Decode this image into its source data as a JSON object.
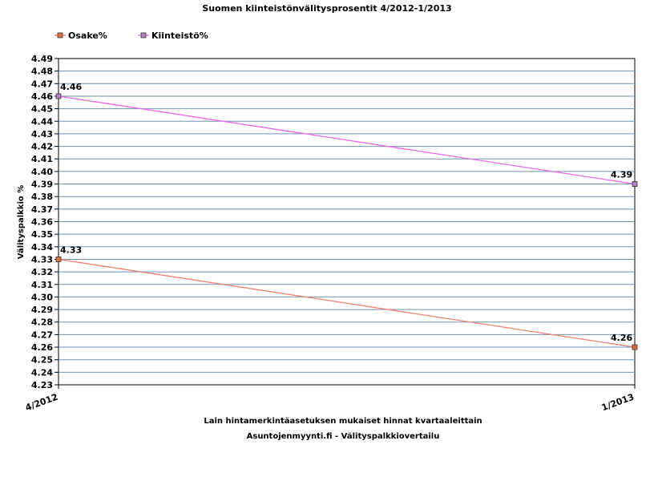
{
  "chart_data": {
    "type": "line",
    "title": "Suomen kiinteistönvälitysprosentit 4/2012-1/2013",
    "xlabel": "Lain hintamerkintäasetuksen mukaiset hinnat kvartaaleittain",
    "subxlabel": "Asuntojenmyynti.fi  -  Välityspalkkiovertailu",
    "ylabel": "Välityspalkkio %",
    "categories": [
      "4/2012",
      "1/2013"
    ],
    "ylim": [
      4.23,
      4.49
    ],
    "ystep": 0.01,
    "grid": true,
    "legend_position": "top-left",
    "series": [
      {
        "name": "Osake%",
        "values": [
          4.33,
          4.26
        ],
        "color": "#f08070",
        "marker_color": "#e07040"
      },
      {
        "name": "Kiinteistö%",
        "values": [
          4.46,
          4.39
        ],
        "color": "#ee66ee",
        "marker_color": "#b080c0"
      }
    ]
  }
}
